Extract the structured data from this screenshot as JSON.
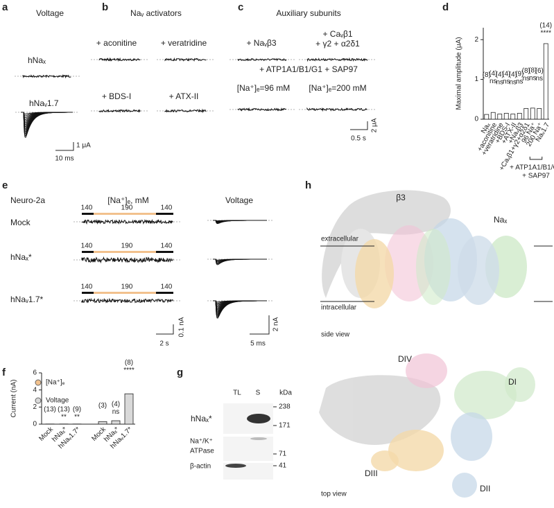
{
  "panels": {
    "a": {
      "letter": "a",
      "title": "Voltage",
      "labels": [
        "hNaₓ",
        "hNaᵥ1.7"
      ],
      "scale": [
        "1 μA",
        "10 ms"
      ]
    },
    "b": {
      "letter": "b",
      "title": "Naᵥ activators",
      "labels": [
        "+ aconitine",
        "+ veratridine",
        "+ BDS-I",
        "+ ATX-II"
      ]
    },
    "c": {
      "letter": "c",
      "title": "Auxiliary subunits",
      "labels": [
        "+ Naᵥβ3",
        "+ Caᵥβ1",
        "+ γ2 + α2δ1",
        "+ ATP1A1/B1/G1 + SAP97",
        "[Na⁺]ₑ=96 mM",
        "[Na⁺]ₑ=200 mM"
      ],
      "scale": [
        "2 μA",
        "0.5 s"
      ]
    },
    "d": {
      "letter": "d"
    },
    "e": {
      "letter": "e",
      "cell": "Neuro-2a",
      "condition": "[Na⁺]ₑ, mM",
      "voltage": "Voltage",
      "rows": [
        "Mock",
        "hNaₓ*",
        "hNaᵥ1.7*"
      ],
      "conc": [
        "140",
        "190",
        "140"
      ],
      "scale_left": [
        "0.1 nA",
        "2 s"
      ],
      "scale_right": [
        "2 nA",
        "5 ms"
      ]
    },
    "f": {
      "letter": "f"
    },
    "g": {
      "letter": "g",
      "lanes": [
        "TL",
        "S"
      ],
      "unit": "kDa",
      "rows": [
        "hNaₓ*",
        "Na⁺/K⁺",
        "ATPase",
        "β-actin"
      ],
      "markers": [
        "238",
        "171",
        "71",
        "41"
      ]
    },
    "h": {
      "letter": "h",
      "labels": [
        "β3",
        "Naₓ",
        "extracellular",
        "intracellular",
        "side view",
        "DIV",
        "DI",
        "DIII",
        "DII",
        "top view"
      ]
    }
  },
  "chart_data": [
    {
      "type": "bar",
      "y_label": "Maximal amplitude (μA)",
      "categories": [
        "Naₓ",
        "+aconitine",
        "+veratridine",
        "+BDS-I",
        "+ATX-II",
        "+Naᵥβ3",
        "+Caᵥβ1+γ2+α2δ1",
        "96 Na⁺",
        "200 Na⁺",
        "Naᵥ1.7"
      ],
      "values": [
        0.12,
        0.17,
        0.13,
        0.15,
        0.13,
        0.15,
        0.27,
        0.28,
        0.27,
        1.9
      ],
      "n_labels": [
        "(8)",
        "(4)",
        "(4)",
        "(4)",
        "(4)",
        "(9)",
        "(8)",
        "(8)",
        "(6)",
        "(14)"
      ],
      "significance": [
        null,
        "ns",
        "ns",
        "ns",
        "ns",
        "ns",
        "ns",
        "ns",
        "ns",
        "****"
      ],
      "annotation": [
        "+ ATP1A1/B1/G1",
        "+ SAP97"
      ],
      "color": "#ffffff",
      "ylim": [
        0,
        2.3
      ],
      "yticks": [
        0,
        1,
        2
      ]
    },
    {
      "type": "bar",
      "y_label": "Current (nA)",
      "categories": [
        "Mock",
        "hNaₓ*",
        "hNaᵥ1.7*",
        "Mock",
        "hNaₓ*",
        "hNaᵥ1.7*"
      ],
      "series": [
        {
          "name": "[Na⁺]ₑ",
          "color": "#f2c18d",
          "values": [
            0.02,
            0.02,
            0.02,
            null,
            null,
            null
          ]
        },
        {
          "name": "Voltage",
          "color": "#d9d9d9",
          "values": [
            null,
            null,
            null,
            0.3,
            0.4,
            3.55
          ]
        }
      ],
      "n_labels": [
        "(13)",
        "(13)",
        "(9)",
        "(3)",
        "(4)",
        "(8)"
      ],
      "significance": [
        null,
        "**",
        "**",
        null,
        "ns",
        "****"
      ],
      "ylim": [
        0,
        6
      ],
      "yticks": [
        0,
        2,
        4,
        6
      ]
    }
  ]
}
